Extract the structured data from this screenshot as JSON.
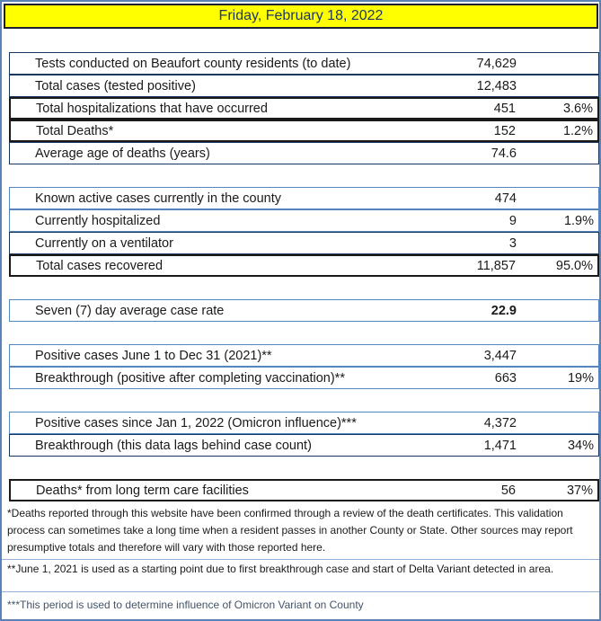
{
  "title": "Friday, February 18, 2022",
  "colors": {
    "header_bg": "#FFFF00",
    "header_text": "#1F3864",
    "outer_border": "#5B82B5",
    "row_border_navy": "#17375E",
    "row_border_blue": "#5585BE",
    "row_border_black": "#1A1A1A",
    "footnote_blue": "#44546A"
  },
  "rows": [
    {
      "label": "Tests conducted on Beaufort county residents (to date)",
      "value": "74,629",
      "percent": ""
    },
    {
      "label": "Total cases (tested positive)",
      "value": "12,483",
      "percent": ""
    },
    {
      "label": "Total hospitalizations that have occurred",
      "value": "451",
      "percent": "3.6%"
    },
    {
      "label": "Total Deaths*",
      "value": "152",
      "percent": "1.2%"
    },
    {
      "label": "Average age of deaths (years)",
      "value": "74.6",
      "percent": ""
    },
    {
      "label": "Known active cases currently in the county",
      "value": "474",
      "percent": ""
    },
    {
      "label": "Currently hospitalized",
      "value": "9",
      "percent": "1.9%"
    },
    {
      "label": "Currently on a ventilator",
      "value": "3",
      "percent": ""
    },
    {
      "label": "Total cases recovered",
      "value": "11,857",
      "percent": "95.0%"
    },
    {
      "label": "Seven (7) day average case rate",
      "value": "22.9",
      "percent": ""
    },
    {
      "label": "Positive cases  June 1 to Dec 31 (2021)**",
      "value": "3,447",
      "percent": ""
    },
    {
      "label": "Breakthrough (positive after completing vaccination)**",
      "value": "663",
      "percent": "19%"
    },
    {
      "label": "Positive cases since Jan 1, 2022 (Omicron influence)***",
      "value": "4,372",
      "percent": ""
    },
    {
      "label": "Breakthrough (this data lags behind case count)",
      "value": "1,471",
      "percent": "34%"
    },
    {
      "label": "Deaths* from long term care facilities",
      "value": "56",
      "percent": "37%"
    }
  ],
  "footnotes": [
    "*Deaths reported through this website have been confirmed through a review of the death certificates.  This validation process can sometimes take a long time when a resident passes in another County or State.  Other sources may report presumptive totals and therefore will vary with those reported here.",
    "**June 1, 2021 is used as a starting point due to first breakthrough case and start of Delta Variant detected in area.",
    "***This period is used to determine influence of Omicron Variant on County"
  ]
}
